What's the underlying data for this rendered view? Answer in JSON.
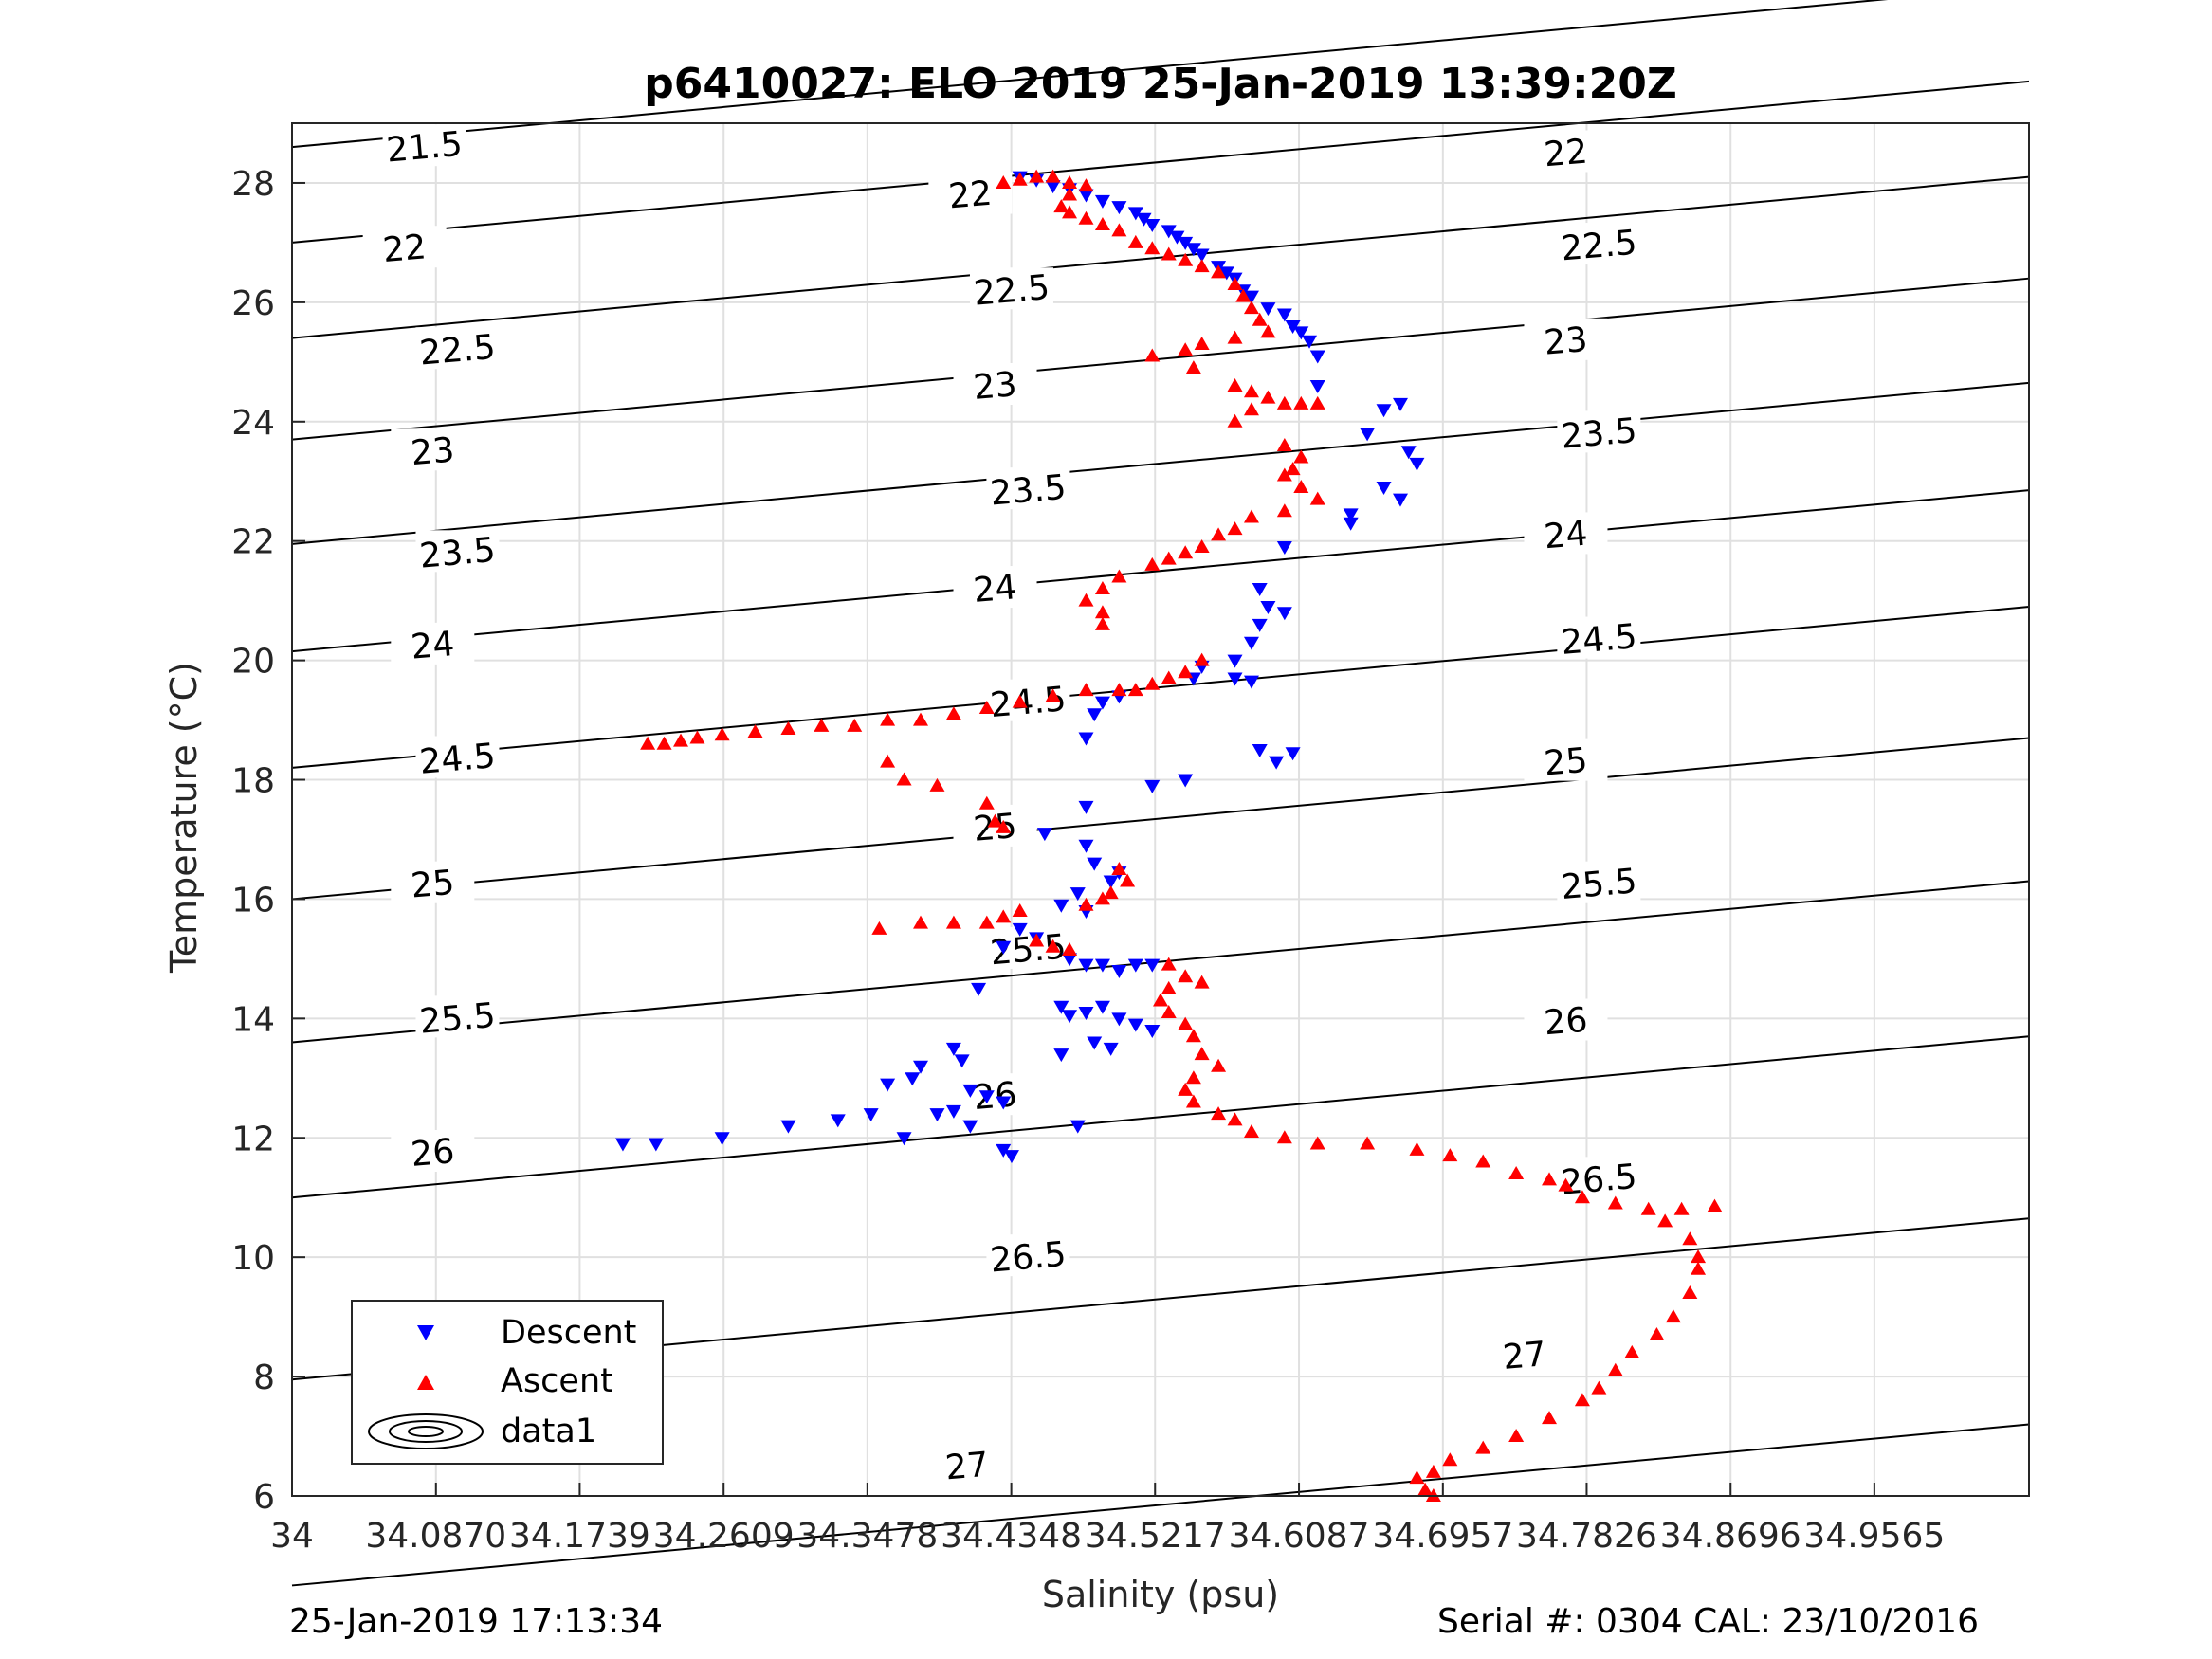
{
  "chart_data": {
    "type": "scatter",
    "title": "p6410027: ELO 2019 25-Jan-2019 13:39:20Z",
    "xlabel": "Salinity (psu)",
    "ylabel": "Temperature (°C)",
    "xlim": [
      34,
      35.05
    ],
    "ylim": [
      6,
      29
    ],
    "grid": true,
    "legend_position": "bottom-left",
    "x_ticks": [
      "34",
      "34.0870",
      "34.1739",
      "34.2609",
      "34.3478",
      "34.4348",
      "34.5217",
      "34.6087",
      "34.6957",
      "34.7826",
      "34.8696",
      "34.9565"
    ],
    "x_tick_values": [
      34,
      34.087,
      34.1739,
      34.2609,
      34.3478,
      34.4348,
      34.5217,
      34.6087,
      34.6957,
      34.7826,
      34.8696,
      34.9565
    ],
    "y_ticks": [
      "6",
      "8",
      "10",
      "12",
      "14",
      "16",
      "18",
      "20",
      "22",
      "24",
      "26",
      "28"
    ],
    "y_tick_values": [
      6,
      8,
      10,
      12,
      14,
      16,
      18,
      20,
      22,
      24,
      26,
      28
    ],
    "contour_levels": [
      21.5,
      22,
      22.5,
      23,
      23.5,
      24,
      24.5,
      25,
      25.5,
      26,
      26.5,
      27
    ],
    "contour_labels": [
      {
        "text": "21.5",
        "x": 34.08,
        "y": 28.6
      },
      {
        "text": "22",
        "x": 34.068,
        "y": 26.9
      },
      {
        "text": "22.5",
        "x": 34.1,
        "y": 25.2
      },
      {
        "text": "23",
        "x": 34.085,
        "y": 23.5
      },
      {
        "text": "23.5",
        "x": 34.1,
        "y": 21.8
      },
      {
        "text": "24",
        "x": 34.085,
        "y": 20.25
      },
      {
        "text": "24.5",
        "x": 34.1,
        "y": 18.35
      },
      {
        "text": "25",
        "x": 34.085,
        "y": 16.25
      },
      {
        "text": "25.5",
        "x": 34.1,
        "y": 14.0
      },
      {
        "text": "26",
        "x": 34.085,
        "y": 11.75
      },
      {
        "text": "26.5",
        "x": 34.1,
        "y": 7.6
      },
      {
        "text": "22",
        "x": 34.41,
        "y": 27.8
      },
      {
        "text": "22.5",
        "x": 34.435,
        "y": 26.2
      },
      {
        "text": "23",
        "x": 34.425,
        "y": 24.6
      },
      {
        "text": "23.5",
        "x": 34.445,
        "y": 22.85
      },
      {
        "text": "24",
        "x": 34.425,
        "y": 21.2
      },
      {
        "text": "24.5",
        "x": 34.445,
        "y": 19.3
      },
      {
        "text": "25",
        "x": 34.425,
        "y": 17.2
      },
      {
        "text": "25.5",
        "x": 34.445,
        "y": 15.15
      },
      {
        "text": "26",
        "x": 34.425,
        "y": 12.7
      },
      {
        "text": "26.5",
        "x": 34.445,
        "y": 10.0
      },
      {
        "text": "27",
        "x": 34.408,
        "y": 6.5
      },
      {
        "text": "22",
        "x": 34.77,
        "y": 28.5
      },
      {
        "text": "22.5",
        "x": 34.79,
        "y": 26.95
      },
      {
        "text": "23",
        "x": 34.77,
        "y": 25.35
      },
      {
        "text": "23.5",
        "x": 34.79,
        "y": 23.8
      },
      {
        "text": "24",
        "x": 34.77,
        "y": 22.1
      },
      {
        "text": "24.5",
        "x": 34.79,
        "y": 20.35
      },
      {
        "text": "25",
        "x": 34.77,
        "y": 18.3
      },
      {
        "text": "25.5",
        "x": 34.79,
        "y": 16.25
      },
      {
        "text": "26",
        "x": 34.77,
        "y": 13.95
      },
      {
        "text": "26.5",
        "x": 34.79,
        "y": 11.3
      },
      {
        "text": "27",
        "x": 34.745,
        "y": 8.35
      }
    ],
    "series": [
      {
        "name": "Descent",
        "color": "#0000ff",
        "marker": "triangle-down",
        "points": [
          [
            34.44,
            28.1
          ],
          [
            34.45,
            28.05
          ],
          [
            34.46,
            27.95
          ],
          [
            34.47,
            27.9
          ],
          [
            34.48,
            27.8
          ],
          [
            34.49,
            27.7
          ],
          [
            34.5,
            27.6
          ],
          [
            34.51,
            27.5
          ],
          [
            34.515,
            27.4
          ],
          [
            34.52,
            27.3
          ],
          [
            34.53,
            27.2
          ],
          [
            34.535,
            27.1
          ],
          [
            34.54,
            27.0
          ],
          [
            34.545,
            26.9
          ],
          [
            34.55,
            26.8
          ],
          [
            34.56,
            26.6
          ],
          [
            34.565,
            26.5
          ],
          [
            34.57,
            26.4
          ],
          [
            34.575,
            26.2
          ],
          [
            34.58,
            26.1
          ],
          [
            34.59,
            25.9
          ],
          [
            34.6,
            25.8
          ],
          [
            34.605,
            25.6
          ],
          [
            34.61,
            25.5
          ],
          [
            34.615,
            25.35
          ],
          [
            34.62,
            25.1
          ],
          [
            34.62,
            24.6
          ],
          [
            34.65,
            23.8
          ],
          [
            34.66,
            24.2
          ],
          [
            34.67,
            24.3
          ],
          [
            34.675,
            23.5
          ],
          [
            34.68,
            23.3
          ],
          [
            34.67,
            22.7
          ],
          [
            34.66,
            22.9
          ],
          [
            34.64,
            22.45
          ],
          [
            34.64,
            22.3
          ],
          [
            34.6,
            21.9
          ],
          [
            34.585,
            21.2
          ],
          [
            34.59,
            20.9
          ],
          [
            34.6,
            20.8
          ],
          [
            34.585,
            20.6
          ],
          [
            34.58,
            20.3
          ],
          [
            34.57,
            20.0
          ],
          [
            34.55,
            19.9
          ],
          [
            34.545,
            19.7
          ],
          [
            34.57,
            19.7
          ],
          [
            34.58,
            19.65
          ],
          [
            34.5,
            19.4
          ],
          [
            34.49,
            19.3
          ],
          [
            34.485,
            19.1
          ],
          [
            34.48,
            18.7
          ],
          [
            34.585,
            18.5
          ],
          [
            34.595,
            18.3
          ],
          [
            34.605,
            18.45
          ],
          [
            34.54,
            18.0
          ],
          [
            34.52,
            17.9
          ],
          [
            34.48,
            17.55
          ],
          [
            34.455,
            17.1
          ],
          [
            34.48,
            16.9
          ],
          [
            34.485,
            16.6
          ],
          [
            34.495,
            16.3
          ],
          [
            34.5,
            16.45
          ],
          [
            34.475,
            16.1
          ],
          [
            34.465,
            15.9
          ],
          [
            34.48,
            15.8
          ],
          [
            34.44,
            15.5
          ],
          [
            34.45,
            15.35
          ],
          [
            34.43,
            15.2
          ],
          [
            34.47,
            15.0
          ],
          [
            34.48,
            14.9
          ],
          [
            34.49,
            14.9
          ],
          [
            34.5,
            14.8
          ],
          [
            34.51,
            14.9
          ],
          [
            34.52,
            14.9
          ],
          [
            34.415,
            14.5
          ],
          [
            34.465,
            14.2
          ],
          [
            34.47,
            14.05
          ],
          [
            34.48,
            14.1
          ],
          [
            34.49,
            14.2
          ],
          [
            34.5,
            14.0
          ],
          [
            34.51,
            13.9
          ],
          [
            34.52,
            13.8
          ],
          [
            34.485,
            13.6
          ],
          [
            34.495,
            13.5
          ],
          [
            34.465,
            13.4
          ],
          [
            34.4,
            13.5
          ],
          [
            34.405,
            13.3
          ],
          [
            34.38,
            13.2
          ],
          [
            34.375,
            13.0
          ],
          [
            34.36,
            12.9
          ],
          [
            34.41,
            12.8
          ],
          [
            34.42,
            12.7
          ],
          [
            34.43,
            12.6
          ],
          [
            34.4,
            12.45
          ],
          [
            34.39,
            12.4
          ],
          [
            34.35,
            12.4
          ],
          [
            34.33,
            12.3
          ],
          [
            34.3,
            12.2
          ],
          [
            34.26,
            12.0
          ],
          [
            34.22,
            11.9
          ],
          [
            34.2,
            11.9
          ],
          [
            34.37,
            12.0
          ],
          [
            34.41,
            12.2
          ],
          [
            34.43,
            11.8
          ],
          [
            34.435,
            11.7
          ],
          [
            34.475,
            12.2
          ]
        ]
      },
      {
        "name": "Ascent",
        "color": "#ff0000",
        "marker": "triangle-up",
        "points": [
          [
            34.43,
            28.0
          ],
          [
            34.44,
            28.05
          ],
          [
            34.45,
            28.1
          ],
          [
            34.46,
            28.1
          ],
          [
            34.47,
            28.0
          ],
          [
            34.48,
            27.95
          ],
          [
            34.47,
            27.8
          ],
          [
            34.465,
            27.6
          ],
          [
            34.47,
            27.5
          ],
          [
            34.48,
            27.4
          ],
          [
            34.49,
            27.3
          ],
          [
            34.5,
            27.2
          ],
          [
            34.51,
            27.0
          ],
          [
            34.52,
            26.9
          ],
          [
            34.53,
            26.8
          ],
          [
            34.54,
            26.7
          ],
          [
            34.55,
            26.6
          ],
          [
            34.56,
            26.5
          ],
          [
            34.57,
            26.3
          ],
          [
            34.575,
            26.1
          ],
          [
            34.58,
            25.9
          ],
          [
            34.585,
            25.7
          ],
          [
            34.59,
            25.5
          ],
          [
            34.57,
            25.4
          ],
          [
            34.55,
            25.3
          ],
          [
            34.54,
            25.2
          ],
          [
            34.52,
            25.1
          ],
          [
            34.545,
            24.9
          ],
          [
            34.57,
            24.6
          ],
          [
            34.58,
            24.5
          ],
          [
            34.59,
            24.4
          ],
          [
            34.6,
            24.3
          ],
          [
            34.61,
            24.3
          ],
          [
            34.62,
            24.3
          ],
          [
            34.58,
            24.2
          ],
          [
            34.57,
            24.0
          ],
          [
            34.6,
            23.6
          ],
          [
            34.61,
            23.4
          ],
          [
            34.605,
            23.2
          ],
          [
            34.6,
            23.1
          ],
          [
            34.61,
            22.9
          ],
          [
            34.62,
            22.7
          ],
          [
            34.6,
            22.5
          ],
          [
            34.58,
            22.4
          ],
          [
            34.57,
            22.2
          ],
          [
            34.56,
            22.1
          ],
          [
            34.55,
            21.9
          ],
          [
            34.54,
            21.8
          ],
          [
            34.53,
            21.7
          ],
          [
            34.52,
            21.6
          ],
          [
            34.5,
            21.4
          ],
          [
            34.49,
            21.2
          ],
          [
            34.48,
            21.0
          ],
          [
            34.49,
            20.8
          ],
          [
            34.49,
            20.6
          ],
          [
            34.55,
            20.0
          ],
          [
            34.54,
            19.8
          ],
          [
            34.53,
            19.7
          ],
          [
            34.52,
            19.6
          ],
          [
            34.51,
            19.5
          ],
          [
            34.5,
            19.5
          ],
          [
            34.48,
            19.5
          ],
          [
            34.46,
            19.4
          ],
          [
            34.44,
            19.3
          ],
          [
            34.42,
            19.2
          ],
          [
            34.4,
            19.1
          ],
          [
            34.38,
            19.0
          ],
          [
            34.36,
            19.0
          ],
          [
            34.34,
            18.9
          ],
          [
            34.32,
            18.9
          ],
          [
            34.3,
            18.85
          ],
          [
            34.28,
            18.8
          ],
          [
            34.26,
            18.75
          ],
          [
            34.245,
            18.7
          ],
          [
            34.235,
            18.65
          ],
          [
            34.225,
            18.6
          ],
          [
            34.215,
            18.6
          ],
          [
            34.36,
            18.3
          ],
          [
            34.37,
            18.0
          ],
          [
            34.39,
            17.9
          ],
          [
            34.42,
            17.6
          ],
          [
            34.425,
            17.3
          ],
          [
            34.43,
            17.2
          ],
          [
            34.5,
            16.5
          ],
          [
            34.505,
            16.3
          ],
          [
            34.495,
            16.1
          ],
          [
            34.49,
            16.0
          ],
          [
            34.48,
            15.9
          ],
          [
            34.44,
            15.8
          ],
          [
            34.43,
            15.7
          ],
          [
            34.42,
            15.6
          ],
          [
            34.4,
            15.6
          ],
          [
            34.38,
            15.6
          ],
          [
            34.355,
            15.5
          ],
          [
            34.45,
            15.3
          ],
          [
            34.46,
            15.2
          ],
          [
            34.47,
            15.15
          ],
          [
            34.53,
            14.9
          ],
          [
            34.54,
            14.7
          ],
          [
            34.55,
            14.6
          ],
          [
            34.53,
            14.5
          ],
          [
            34.525,
            14.3
          ],
          [
            34.53,
            14.1
          ],
          [
            34.54,
            13.9
          ],
          [
            34.545,
            13.7
          ],
          [
            34.55,
            13.4
          ],
          [
            34.56,
            13.2
          ],
          [
            34.545,
            13.0
          ],
          [
            34.54,
            12.8
          ],
          [
            34.545,
            12.6
          ],
          [
            34.56,
            12.4
          ],
          [
            34.57,
            12.3
          ],
          [
            34.58,
            12.1
          ],
          [
            34.6,
            12.0
          ],
          [
            34.62,
            11.9
          ],
          [
            34.65,
            11.9
          ],
          [
            34.68,
            11.8
          ],
          [
            34.7,
            11.7
          ],
          [
            34.72,
            11.6
          ],
          [
            34.74,
            11.4
          ],
          [
            34.76,
            11.3
          ],
          [
            34.77,
            11.2
          ],
          [
            34.78,
            11.0
          ],
          [
            34.8,
            10.9
          ],
          [
            34.82,
            10.8
          ],
          [
            34.84,
            10.8
          ],
          [
            34.86,
            10.85
          ],
          [
            34.83,
            10.6
          ],
          [
            34.845,
            10.3
          ],
          [
            34.85,
            10.0
          ],
          [
            34.85,
            9.8
          ],
          [
            34.845,
            9.4
          ],
          [
            34.835,
            9.0
          ],
          [
            34.825,
            8.7
          ],
          [
            34.81,
            8.4
          ],
          [
            34.8,
            8.1
          ],
          [
            34.79,
            7.8
          ],
          [
            34.78,
            7.6
          ],
          [
            34.76,
            7.3
          ],
          [
            34.74,
            7.0
          ],
          [
            34.72,
            6.8
          ],
          [
            34.7,
            6.6
          ],
          [
            34.69,
            6.4
          ],
          [
            34.68,
            6.3
          ],
          [
            34.685,
            6.1
          ],
          [
            34.69,
            6.0
          ]
        ]
      }
    ],
    "legend": [
      {
        "label": "Descent",
        "marker": "triangle-down",
        "color": "#0000ff"
      },
      {
        "label": "Ascent",
        "marker": "triangle-up",
        "color": "#ff0000"
      },
      {
        "label": "data1",
        "marker": "contour",
        "color": "#000000"
      }
    ]
  },
  "footer": {
    "left": "25-Jan-2019 17:13:34",
    "right": "Serial #: 0304  CAL: 23/10/2016"
  }
}
